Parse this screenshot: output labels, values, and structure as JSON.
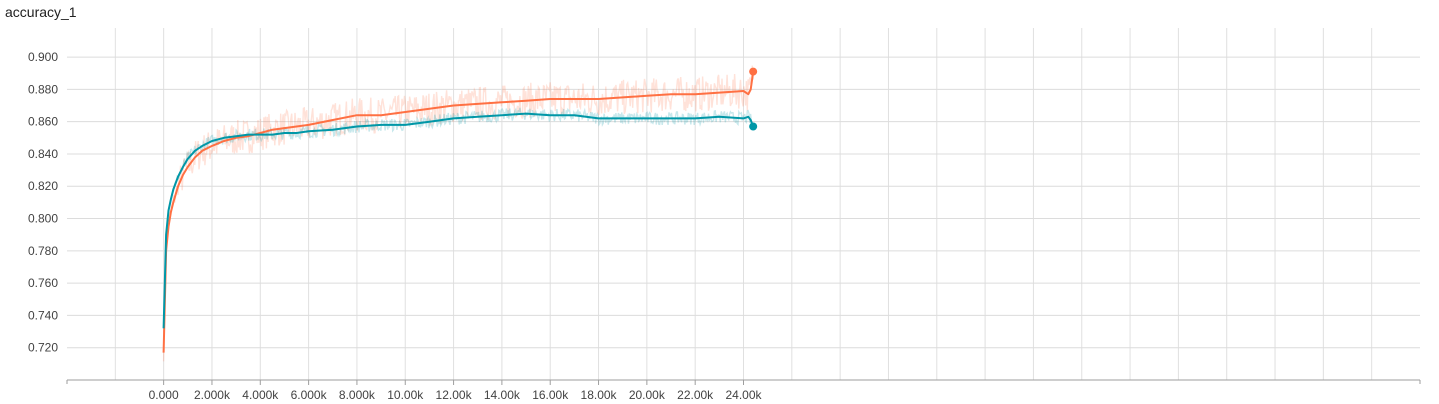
{
  "chart_data": {
    "type": "line",
    "title": "accuracy_1",
    "xlabel": "",
    "ylabel": "",
    "x_ticks": [
      "0.000",
      "2.000k",
      "4.000k",
      "6.000k",
      "8.000k",
      "10.00k",
      "12.00k",
      "14.00k",
      "16.00k",
      "18.00k",
      "20.00k",
      "22.00k",
      "24.00k"
    ],
    "y_ticks": [
      "0.720",
      "0.740",
      "0.760",
      "0.780",
      "0.800",
      "0.820",
      "0.840",
      "0.860",
      "0.880",
      "0.900"
    ],
    "xlim": [
      -4000,
      52000
    ],
    "ylim": [
      0.7,
      0.918
    ],
    "grid": true,
    "series": [
      {
        "color": "#ff7043",
        "x": [
          0,
          100,
          200,
          300,
          400,
          600,
          800,
          1000,
          1300,
          1600,
          2000,
          2500,
          3000,
          3500,
          4000,
          4500,
          5000,
          5500,
          6000,
          7000,
          8000,
          9000,
          10000,
          11000,
          12000,
          13000,
          14000,
          15000,
          16000,
          17000,
          18000,
          19000,
          20000,
          21000,
          22000,
          23000,
          24000,
          24200,
          24300,
          24400
        ],
        "y": [
          0.717,
          0.78,
          0.795,
          0.804,
          0.81,
          0.82,
          0.827,
          0.832,
          0.838,
          0.842,
          0.845,
          0.848,
          0.85,
          0.851,
          0.853,
          0.855,
          0.856,
          0.857,
          0.858,
          0.861,
          0.864,
          0.864,
          0.866,
          0.868,
          0.87,
          0.871,
          0.872,
          0.873,
          0.874,
          0.874,
          0.874,
          0.875,
          0.876,
          0.877,
          0.877,
          0.878,
          0.879,
          0.877,
          0.88,
          0.891
        ]
      },
      {
        "color": "#0097a7",
        "x": [
          0,
          100,
          200,
          300,
          400,
          600,
          800,
          1000,
          1300,
          1600,
          2000,
          2500,
          3000,
          3500,
          4000,
          4500,
          5000,
          5500,
          6000,
          7000,
          8000,
          9000,
          10000,
          11000,
          12000,
          13000,
          14000,
          15000,
          16000,
          17000,
          18000,
          19000,
          20000,
          21000,
          22000,
          23000,
          24000,
          24200,
          24300,
          24400
        ],
        "y": [
          0.732,
          0.79,
          0.805,
          0.812,
          0.818,
          0.826,
          0.832,
          0.837,
          0.842,
          0.845,
          0.848,
          0.85,
          0.851,
          0.852,
          0.852,
          0.852,
          0.853,
          0.853,
          0.854,
          0.855,
          0.857,
          0.858,
          0.858,
          0.86,
          0.862,
          0.863,
          0.864,
          0.865,
          0.864,
          0.864,
          0.862,
          0.862,
          0.862,
          0.862,
          0.862,
          0.863,
          0.862,
          0.863,
          0.861,
          0.857
        ]
      }
    ]
  }
}
